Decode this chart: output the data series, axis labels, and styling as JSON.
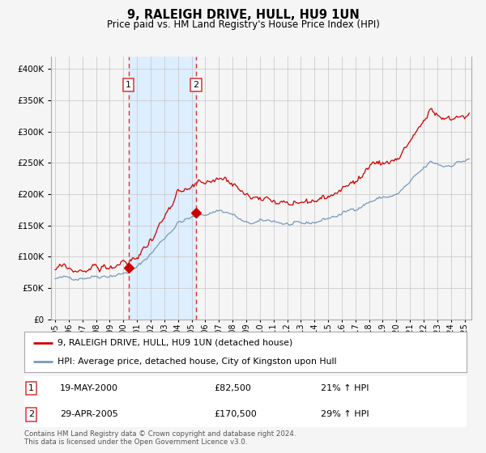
{
  "title": "9, RALEIGH DRIVE, HULL, HU9 1UN",
  "subtitle": "Price paid vs. HM Land Registry's House Price Index (HPI)",
  "footer_line1": "Contains HM Land Registry data © Crown copyright and database right 2024.",
  "footer_line2": "This data is licensed under the Open Government Licence v3.0.",
  "legend_line1": "9, RALEIGH DRIVE, HULL, HU9 1UN (detached house)",
  "legend_line2": "HPI: Average price, detached house, City of Kingston upon Hull",
  "sale1_date": "19-MAY-2000",
  "sale1_price": "£82,500",
  "sale1_hpi": "21% ↑ HPI",
  "sale1_year": 2000.38,
  "sale1_value": 82500,
  "sale2_date": "29-APR-2005",
  "sale2_price": "£170,500",
  "sale2_hpi": "29% ↑ HPI",
  "sale2_year": 2005.33,
  "sale2_value": 170500,
  "red_color": "#cc0000",
  "blue_color": "#7799bb",
  "shade_color": "#ddeeff",
  "dashed_color": "#dd3333",
  "grid_color": "#cccccc",
  "bg_color": "#f5f5f5",
  "ylim": [
    0,
    420000
  ],
  "yticks": [
    0,
    50000,
    100000,
    150000,
    200000,
    250000,
    300000,
    350000,
    400000
  ],
  "xlim_start": 1994.7,
  "xlim_end": 2025.5
}
